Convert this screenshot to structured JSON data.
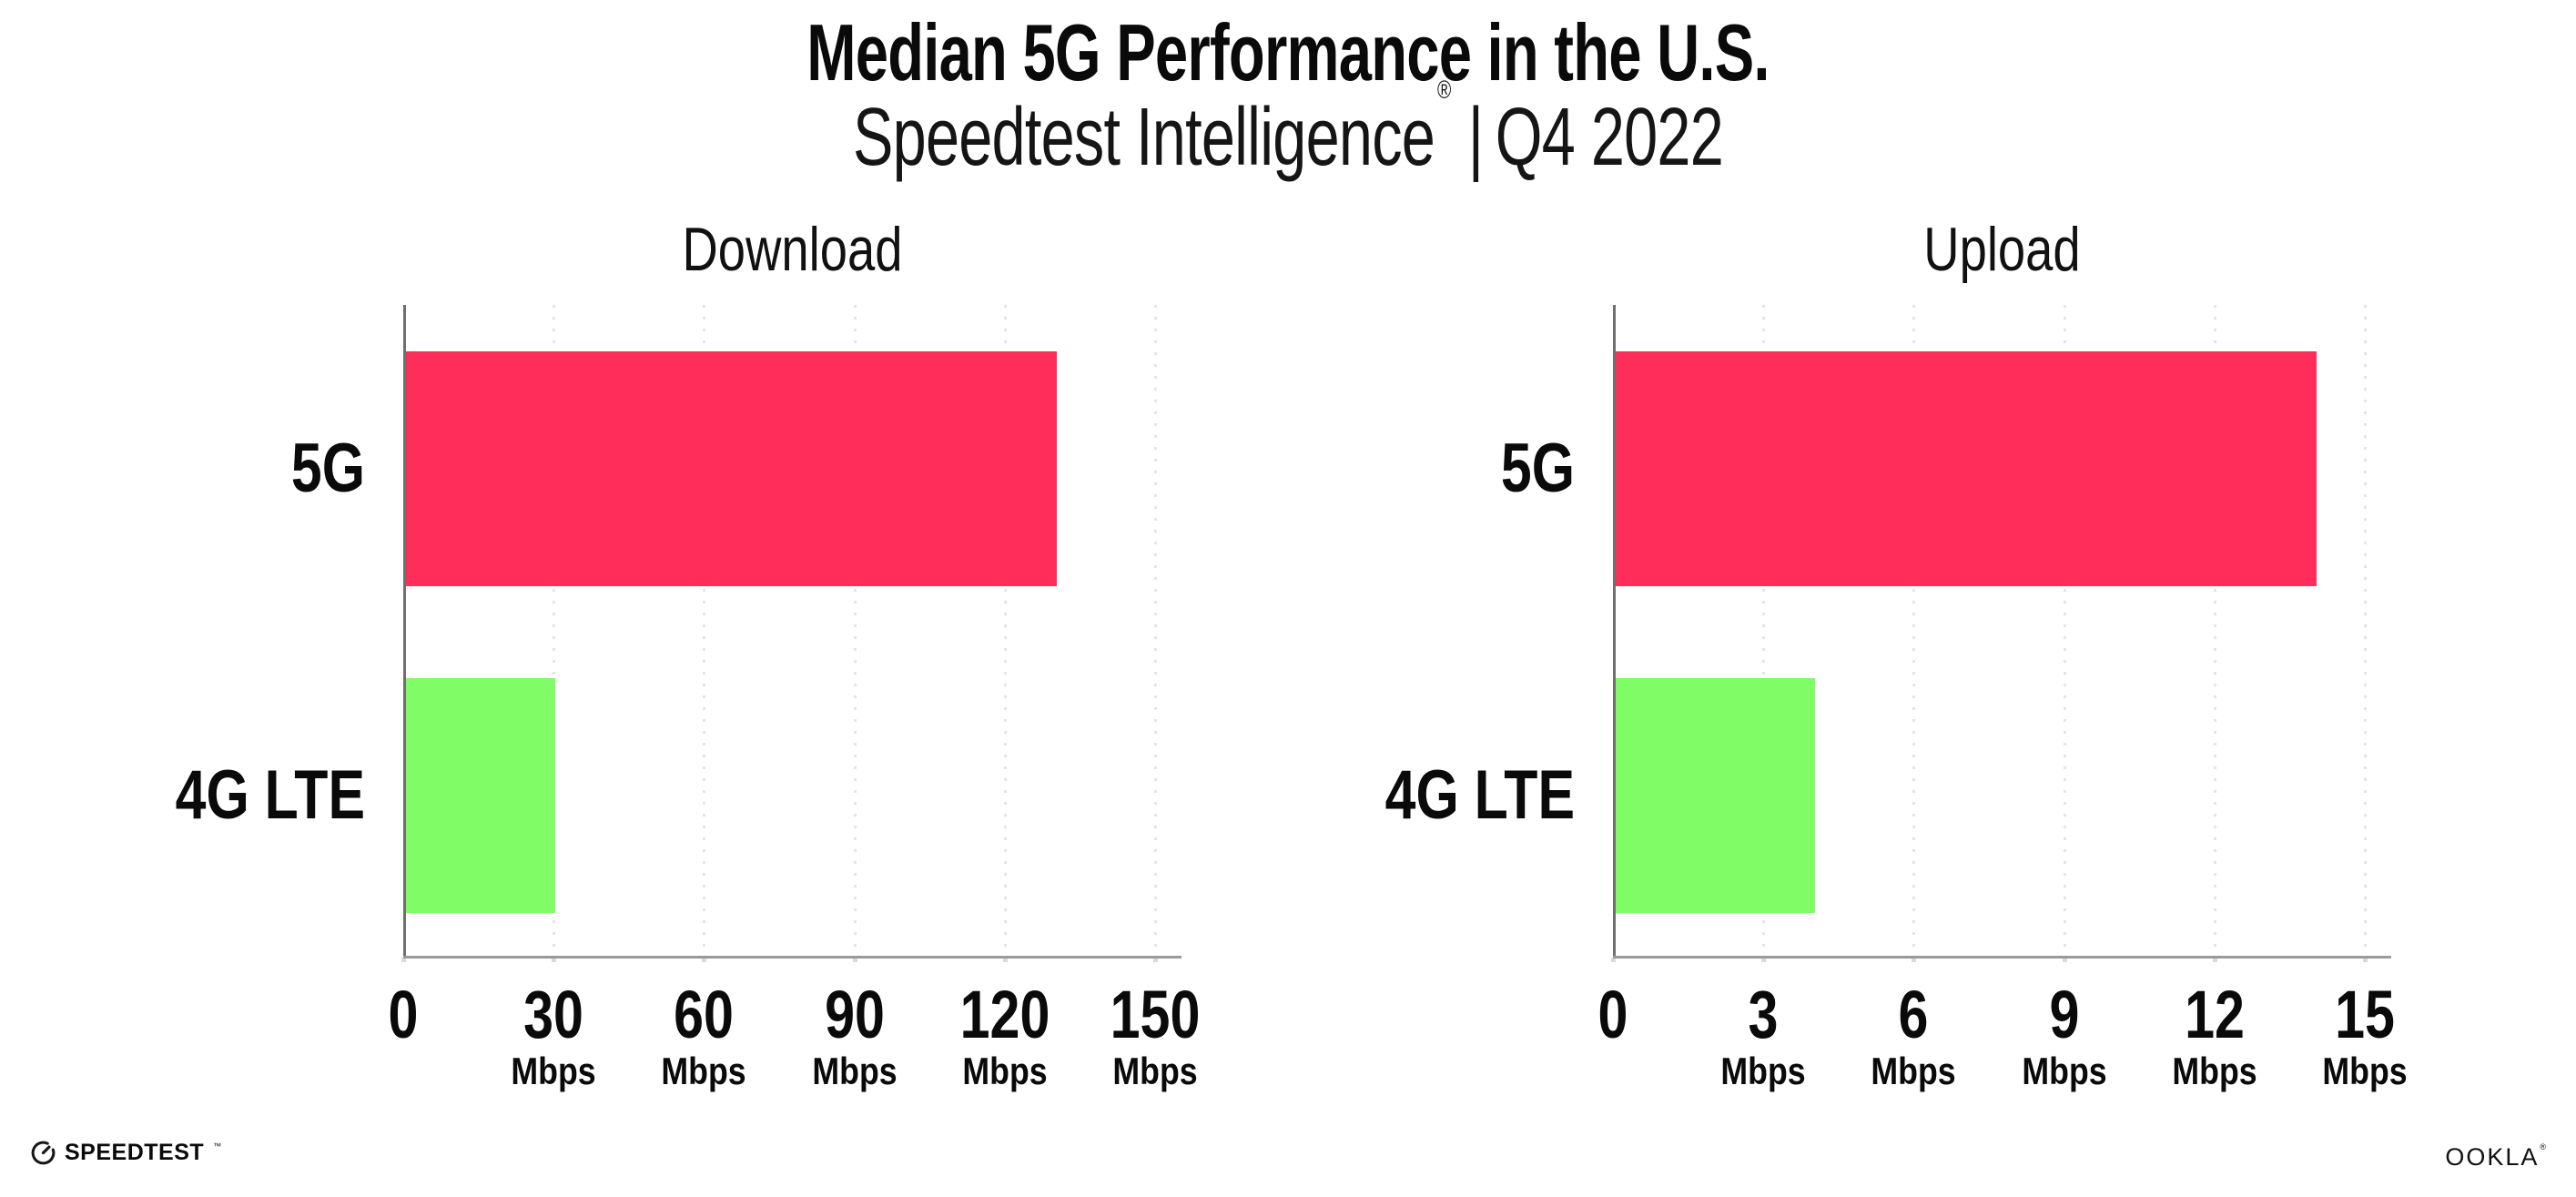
{
  "header": {
    "title": "Median 5G Performance in the U.S.",
    "subtitle_brand": "Speedtest Intelligence",
    "registered_mark": "®",
    "subtitle_separator": "|",
    "subtitle_period": "Q4 2022"
  },
  "footer": {
    "speedtest_label": "SPEEDTEST",
    "speedtest_mark": "™",
    "ookla_label": "OOKLA",
    "ookla_mark": "®"
  },
  "colors": {
    "bar_5g": "#FF2D5A",
    "bar_4g_lte": "#80FC66",
    "x_axis_line": "#9A9A9A",
    "y_axis_line": "#6F6F6F",
    "gridline": "#E3E3EB",
    "axis_tick_dot": "#D9D9E1"
  },
  "chart_data": [
    {
      "type": "bar",
      "orientation": "horizontal",
      "title": "Download",
      "categories": [
        "5G",
        "4G LTE"
      ],
      "values": [
        130,
        30
      ],
      "unit": "Mbps",
      "xlim": [
        0,
        150
      ],
      "xticks": [
        0,
        30,
        60,
        90,
        120,
        150
      ],
      "tick_unit_label": "Mbps",
      "bar_colors": [
        "#FF2D5A",
        "#80FC66"
      ],
      "grid": "dotted-vertical",
      "legend": "none"
    },
    {
      "type": "bar",
      "orientation": "horizontal",
      "title": "Upload",
      "categories": [
        "5G",
        "4G LTE"
      ],
      "values": [
        14,
        4
      ],
      "unit": "Mbps",
      "xlim": [
        0,
        15
      ],
      "xticks": [
        0,
        3,
        6,
        9,
        12,
        15
      ],
      "tick_unit_label": "Mbps",
      "bar_colors": [
        "#FF2D5A",
        "#80FC66"
      ],
      "grid": "dotted-vertical",
      "legend": "none"
    }
  ]
}
